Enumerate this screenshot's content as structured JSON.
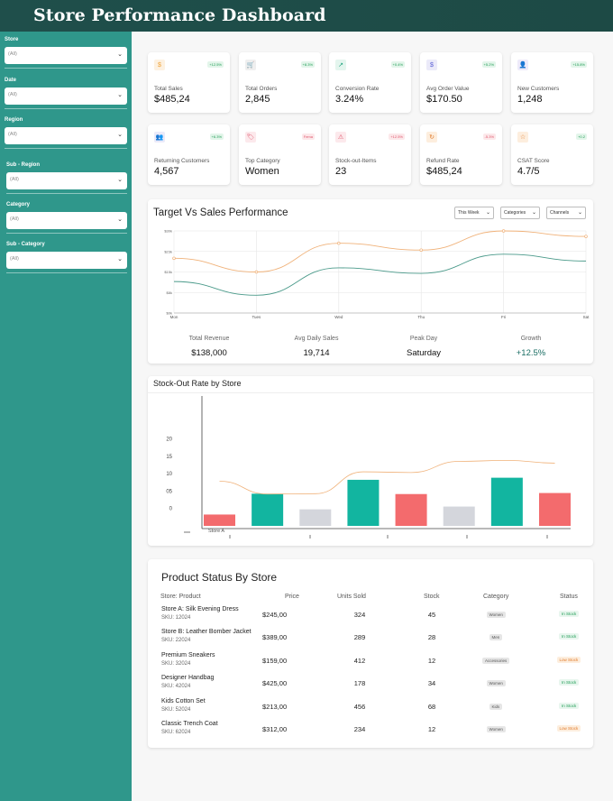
{
  "header": {
    "title": "Store Performance Dashboard"
  },
  "filters": [
    {
      "label": "Store",
      "value": "(All)"
    },
    {
      "label": "Date",
      "value": "(All)"
    },
    {
      "label": "Region",
      "value": "(All)"
    },
    {
      "label": "Sub - Region",
      "value": "(All)"
    },
    {
      "label": "Category",
      "value": "(All)"
    },
    {
      "label": "Sub - Category",
      "value": "(All)"
    }
  ],
  "kpis": [
    {
      "label": "Total Sales",
      "value": "$485,24",
      "change": "+12.5%",
      "icon": "$",
      "icon_name": "dollar-icon",
      "icon_color": "#f0a43a",
      "icon_bg": "#fdf1e1",
      "trend": "up"
    },
    {
      "label": "Total Orders",
      "value": "2,845",
      "change": "+8.3%",
      "icon": "🛒",
      "icon_name": "cart-icon",
      "icon_color": "#333333",
      "icon_bg": "#efefef",
      "trend": "up"
    },
    {
      "label": "Conversion Rate",
      "value": "3.24%",
      "change": "+0.4%",
      "icon": "↗",
      "icon_name": "trend-up-icon",
      "icon_color": "#1fa37e",
      "icon_bg": "#e4f5ee",
      "trend": "up"
    },
    {
      "label": "Avg Order Value",
      "value": "$170.50",
      "change": "+5.2%",
      "icon": "$",
      "icon_name": "dollar-icon",
      "icon_color": "#5a5fd6",
      "icon_bg": "#ebeaf9",
      "trend": "up"
    },
    {
      "label": "New Customers",
      "value": "1,248",
      "change": "+15.8%",
      "icon": "👤",
      "icon_name": "user-plus-icon",
      "icon_color": "#7b5fd6",
      "icon_bg": "#eeeafa",
      "trend": "up"
    },
    {
      "label": "Returning Customers",
      "value": "4,567",
      "change": "+6.3%",
      "icon": "👥",
      "icon_name": "users-icon",
      "icon_color": "#5a5fd6",
      "icon_bg": "#ebeaf9",
      "trend": "up"
    },
    {
      "label": "Top Category",
      "value": "Women",
      "change": "Fema",
      "icon": "🏷",
      "icon_name": "tag-icon",
      "icon_color": "#e0556b",
      "icon_bg": "#fce9ec",
      "trend": "down"
    },
    {
      "label": "Stock-out-Items",
      "value": "23",
      "change": "+12.5%",
      "icon": "⚠",
      "icon_name": "alert-icon",
      "icon_color": "#e0556b",
      "icon_bg": "#fce9ec",
      "trend": "down"
    },
    {
      "label": "Refund Rate",
      "value": "$485,24",
      "change": "-5.3%",
      "icon": "↻",
      "icon_name": "refund-icon",
      "icon_color": "#e07b2c",
      "icon_bg": "#fdeede",
      "trend": "down"
    },
    {
      "label": "CSAT Score",
      "value": "4.7/5",
      "change": "+0.2",
      "icon": "☆",
      "icon_name": "star-icon",
      "icon_color": "#e07b2c",
      "icon_bg": "#fdeede",
      "trend": "up"
    }
  ],
  "colors": {
    "up_text": "#1f9d55",
    "up_bg": "#e3f5ea",
    "down_text": "#e0556b",
    "down_bg": "#fce8ea",
    "teal": "#12b5a0",
    "coral": "#f36b6d",
    "grey": "#d4d6dc",
    "line_orange": "#f0b27a",
    "line_teal": "#4a9a8a"
  },
  "target_chart": {
    "title": "Target Vs Sales Performance",
    "dropdowns": [
      "This Week",
      "Categories",
      "Channels"
    ],
    "stats": [
      {
        "label": "Total Revenue",
        "value": "$138,000"
      },
      {
        "label": "Avg Daily Sales",
        "value": "19,714"
      },
      {
        "label": "Peak Day",
        "value": "Saturday"
      },
      {
        "label": "Growth",
        "value": "+12.5%"
      }
    ]
  },
  "stockout_chart": {
    "title": "Stock-Out Rate by Store",
    "store_label": "Store A"
  },
  "chart_data": [
    {
      "type": "line",
      "title": "Target Vs Sales Performance",
      "categories": [
        "Mon",
        "Tues",
        "Wed",
        "Thu",
        "Fri",
        "Sat"
      ],
      "y_ticks": [
        "$0k",
        "$8k",
        "$15k",
        "$23k",
        "$30k"
      ],
      "ylim": [
        0,
        30
      ],
      "series": [
        {
          "values": [
            20,
            15,
            25.5,
            23,
            30,
            28
          ]
        },
        {
          "values": [
            11.5,
            6.5,
            16.5,
            14.5,
            21.5,
            19
          ]
        }
      ]
    },
    {
      "type": "bar",
      "title": "Stock-Out Rate by Store",
      "y_ticks": [
        "0",
        "05",
        "10",
        "15",
        "20"
      ],
      "ylim": [
        -10,
        30
      ],
      "values": [
        -1.8,
        4.2,
        -0.3,
        8.2,
        4.1,
        0.5,
        8.8,
        4.4
      ],
      "bar_colors": [
        "coral",
        "teal",
        "grey",
        "teal",
        "coral",
        "grey",
        "teal",
        "coral"
      ],
      "line": [
        7.8,
        4.1,
        4.2,
        10.5,
        10.3,
        13.5,
        13.8,
        13
      ]
    }
  ],
  "product_table": {
    "title": "Product Status By Store",
    "headers": [
      "Store: Product",
      "Price",
      "Units Sold",
      "Stock",
      "Category",
      "Status"
    ],
    "rows": [
      {
        "name": "Store A: Silk Evening Dress",
        "sku": "SKU: 12024",
        "price": "$245,00",
        "units": "324",
        "stock": "45",
        "category": "Women",
        "status": "In Stock",
        "status_type": "in"
      },
      {
        "name": "Store B: Leather Bomber Jacket",
        "sku": "SKU: 22024",
        "price": "$389,00",
        "units": "289",
        "stock": "28",
        "category": "Men",
        "status": "In Stock",
        "status_type": "in"
      },
      {
        "name": "Premium Sneakers",
        "sku": "SKU: 32024",
        "price": "$159,00",
        "units": "412",
        "stock": "12",
        "category": "Accessories",
        "status": "Low Stock",
        "status_type": "low"
      },
      {
        "name": "Designer Handbag",
        "sku": "SKU: 42024",
        "price": "$425,00",
        "units": "178",
        "stock": "34",
        "category": "Women",
        "status": "In Stock",
        "status_type": "in"
      },
      {
        "name": "Kids Cotton Set",
        "sku": "SKU: 52024",
        "price": "$213,00",
        "units": "456",
        "stock": "68",
        "category": "Kids",
        "status": "In Stock",
        "status_type": "in"
      },
      {
        "name": "Classic Trench Coat",
        "sku": "SKU: 62024",
        "price": "$312,00",
        "units": "234",
        "stock": "12",
        "category": "Women",
        "status": "Low Stock",
        "status_type": "low"
      }
    ]
  }
}
